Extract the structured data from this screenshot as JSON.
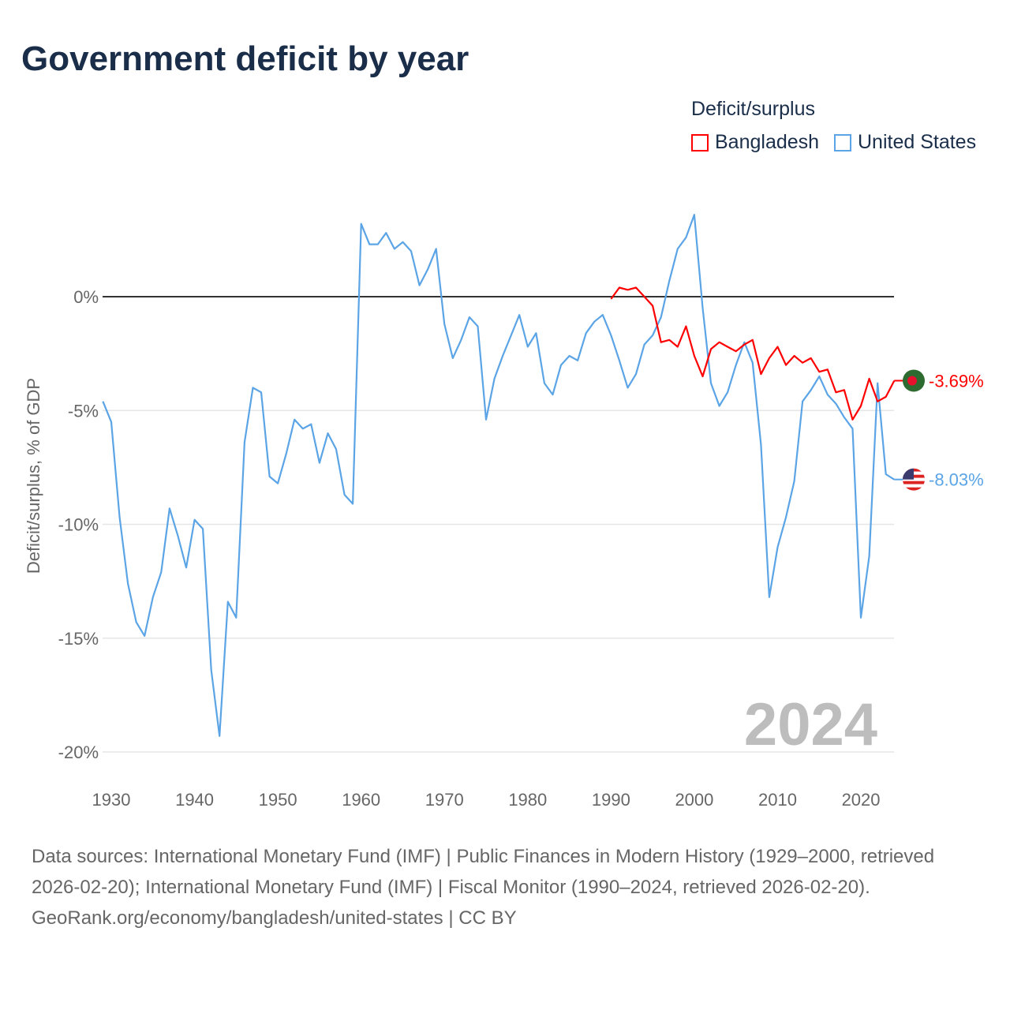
{
  "chart_data": {
    "type": "line",
    "title": "Government deficit by year",
    "ylabel": "Deficit/surplus, % of GDP",
    "xlabel": "",
    "ylim": [
      -20,
      4
    ],
    "xlim": [
      1929,
      2024
    ],
    "y_ticks": [
      {
        "v": 0,
        "label": "0%"
      },
      {
        "v": -5,
        "label": "-5%"
      },
      {
        "v": -10,
        "label": "-10%"
      },
      {
        "v": -15,
        "label": "-15%"
      },
      {
        "v": -20,
        "label": "-20%"
      }
    ],
    "x_ticks": [
      1930,
      1940,
      1950,
      1960,
      1970,
      1980,
      1990,
      2000,
      2010,
      2020
    ],
    "legend_title": "Deficit/surplus",
    "legend_placement": "top-right",
    "year_watermark": "2024",
    "series": [
      {
        "name": "Bangladesh",
        "color": "#ff0000",
        "end_label": "-3.69%",
        "start_year": 1990,
        "values": [
          -0.1,
          0.4,
          0.3,
          0.4,
          0.0,
          -0.4,
          -2.0,
          -1.9,
          -2.2,
          -1.3,
          -2.6,
          -3.5,
          -2.3,
          -2.0,
          -2.2,
          -2.4,
          -2.1,
          -1.9,
          -3.4,
          -2.7,
          -2.2,
          -3.0,
          -2.6,
          -2.9,
          -2.7,
          -3.3,
          -3.2,
          -4.2,
          -4.1,
          -5.4,
          -4.8,
          -3.6,
          -4.6,
          -4.4,
          -3.69
        ]
      },
      {
        "name": "United States",
        "color": "#5ba4e6",
        "end_label": "-8.03%",
        "start_year": 1929,
        "values": [
          -4.6,
          -5.5,
          -9.7,
          -12.6,
          -14.3,
          -14.9,
          -13.2,
          -12.1,
          -9.3,
          -10.5,
          -11.9,
          -9.8,
          -10.2,
          -16.4,
          -19.3,
          -13.4,
          -14.1,
          -6.4,
          -4.0,
          -4.2,
          -7.9,
          -8.2,
          -6.9,
          -5.4,
          -5.8,
          -5.6,
          -7.3,
          -6.0,
          -6.7,
          -8.7,
          -9.1,
          3.2,
          2.3,
          2.3,
          2.8,
          2.1,
          2.4,
          2.0,
          0.5,
          1.2,
          2.1,
          -1.2,
          -2.7,
          -1.9,
          -0.9,
          -1.3,
          -5.4,
          -3.6,
          -2.6,
          -1.7,
          -0.8,
          -2.2,
          -1.6,
          -3.8,
          -4.3,
          -3.0,
          -2.6,
          -2.8,
          -1.6,
          -1.1,
          -0.8,
          -1.7,
          -2.8,
          -4.0,
          -3.4,
          -2.1,
          -1.7,
          -0.9,
          0.7,
          2.1,
          2.6,
          3.6,
          -0.5,
          -3.8,
          -4.8,
          -4.2,
          -3.0,
          -2.0,
          -2.9,
          -6.5,
          -13.2,
          -11.0,
          -9.7,
          -8.1,
          -4.6,
          -4.1,
          -3.5,
          -4.3,
          -4.7,
          -5.3,
          -5.8,
          -14.1,
          -11.4,
          -3.8,
          -7.8,
          -8.03
        ]
      }
    ]
  },
  "footer": {
    "sources": "Data sources: International Monetary Fund (IMF) | Public Finances in Modern History (1929–2000, retrieved 2026-02-20); International Monetary Fund (IMF) | Fiscal Monitor (1990–2024, retrieved 2026-02-20).",
    "credit": "GeoRank.org/economy/bangladesh/united-states | CC BY"
  }
}
